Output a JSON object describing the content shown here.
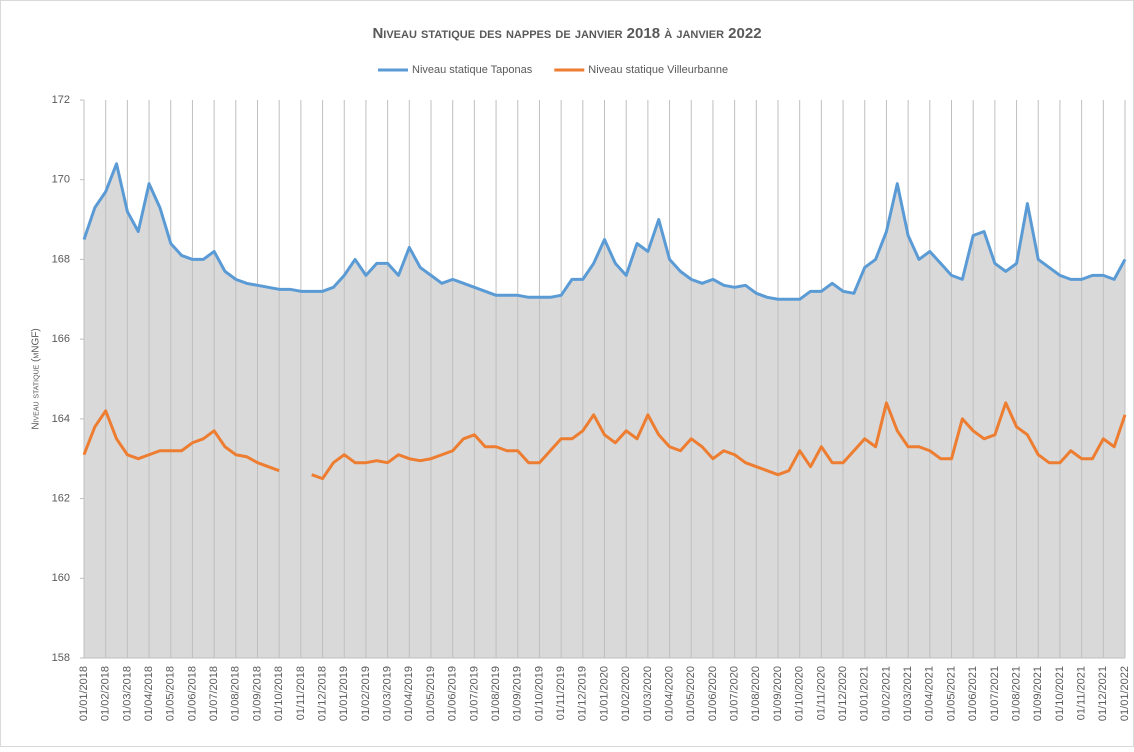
{
  "chart_data": {
    "type": "line",
    "title": "Niveau statique des nappes de janvier 2018 à janvier 2022",
    "y_label": "Niveau statique (mNGF)",
    "categories": [
      "01/01/2018",
      null,
      "01/02/2018",
      null,
      "01/03/2018",
      null,
      "01/04/2018",
      null,
      "01/05/2018",
      null,
      "01/06/2018",
      null,
      "01/07/2018",
      null,
      "01/08/2018",
      null,
      "01/09/2018",
      null,
      "01/10/2018",
      null,
      "01/11/2018",
      null,
      "01/12/2018",
      null,
      "01/01/2019",
      null,
      "01/02/2019",
      null,
      "01/03/2019",
      null,
      "01/04/2019",
      null,
      "01/05/2019",
      null,
      "01/06/2019",
      null,
      "01/07/2019",
      null,
      "01/08/2019",
      null,
      "01/09/2019",
      null,
      "01/10/2019",
      null,
      "01/11/2019",
      null,
      "01/12/2019",
      null,
      "01/01/2020",
      null,
      "01/02/2020",
      null,
      "01/03/2020",
      null,
      "01/04/2020",
      null,
      "01/05/2020",
      null,
      "01/06/2020",
      null,
      "01/07/2020",
      null,
      "01/08/2020",
      null,
      "01/09/2020",
      null,
      "01/10/2020",
      null,
      "01/11/2020",
      null,
      "01/12/2020",
      null,
      "01/01/2021",
      null,
      "01/02/2021",
      null,
      "01/03/2021",
      null,
      "01/04/2021",
      null,
      "01/05/2021",
      null,
      "01/06/2021",
      null,
      "01/07/2021",
      null,
      "01/08/2021",
      null,
      "01/09/2021",
      null,
      "01/10/2021",
      null,
      "01/11/2021",
      null,
      "01/12/2021",
      null,
      "01/01/2022"
    ],
    "series": [
      {
        "name": "Niveau statique Taponas",
        "color": "#5b9bd5",
        "area_color": "#d9d9d9",
        "values": [
          168.5,
          169.3,
          169.7,
          170.4,
          169.2,
          168.7,
          169.9,
          169.3,
          168.4,
          168.1,
          168.0,
          168.0,
          168.2,
          167.7,
          167.5,
          167.4,
          167.35,
          167.3,
          167.25,
          167.25,
          167.2,
          167.2,
          167.2,
          167.3,
          167.6,
          168.0,
          167.6,
          167.9,
          167.9,
          167.6,
          168.3,
          167.8,
          167.6,
          167.4,
          167.5,
          167.4,
          167.3,
          167.2,
          167.1,
          167.1,
          167.1,
          167.05,
          167.05,
          167.05,
          167.1,
          167.5,
          167.5,
          167.9,
          168.5,
          167.9,
          167.6,
          168.4,
          168.2,
          169.0,
          168.0,
          167.7,
          167.5,
          167.4,
          167.5,
          167.35,
          167.3,
          167.35,
          167.15,
          167.05,
          167.0,
          167.0,
          167.0,
          167.2,
          167.2,
          167.4,
          167.2,
          167.15,
          167.8,
          168.0,
          168.7,
          169.9,
          168.6,
          168.0,
          168.2,
          167.9,
          167.6,
          167.5,
          168.6,
          168.7,
          167.9,
          167.7,
          167.9,
          169.4,
          168.0,
          167.8,
          167.6,
          167.5,
          167.5,
          167.6,
          167.6,
          167.5,
          168.0
        ]
      },
      {
        "name": "Niveau statique Villeurbanne",
        "color": "#ed7d31",
        "values": [
          163.1,
          163.8,
          164.2,
          163.5,
          163.1,
          163.0,
          163.1,
          163.2,
          163.2,
          163.2,
          163.4,
          163.5,
          163.7,
          163.3,
          163.1,
          163.05,
          162.9,
          162.8,
          162.7,
          null,
          null,
          162.6,
          162.5,
          162.9,
          163.1,
          162.9,
          162.9,
          162.95,
          162.9,
          163.1,
          163.0,
          162.95,
          163.0,
          163.1,
          163.2,
          163.5,
          163.6,
          163.3,
          163.3,
          163.2,
          163.2,
          162.9,
          162.9,
          163.2,
          163.5,
          163.5,
          163.7,
          164.1,
          163.6,
          163.4,
          163.7,
          163.5,
          164.1,
          163.6,
          163.3,
          163.2,
          163.5,
          163.3,
          163.0,
          163.2,
          163.1,
          162.9,
          162.8,
          162.7,
          162.6,
          162.7,
          163.2,
          162.8,
          163.3,
          162.9,
          162.9,
          163.2,
          163.5,
          163.3,
          164.4,
          163.7,
          163.3,
          163.3,
          163.2,
          163.0,
          163.0,
          164.0,
          163.7,
          163.5,
          163.6,
          164.4,
          163.8,
          163.6,
          163.1,
          162.9,
          162.9,
          163.2,
          163.0,
          163.0,
          163.5,
          163.3,
          164.1
        ]
      }
    ],
    "ylim": [
      158,
      172
    ],
    "yticks": [
      158,
      160,
      162,
      164,
      166,
      168,
      170,
      172
    ],
    "grid": "x",
    "legend": "top"
  }
}
